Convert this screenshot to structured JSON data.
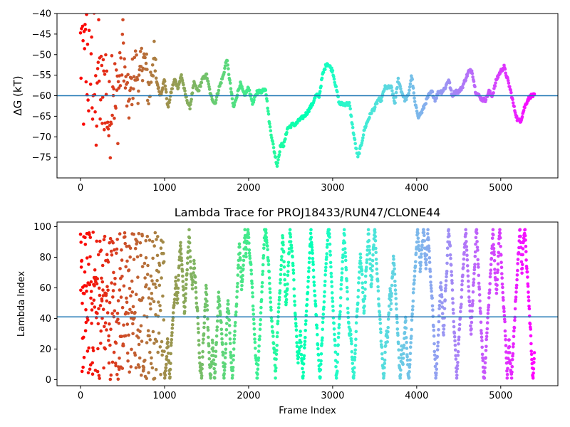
{
  "chart_data": [
    {
      "type": "scatter",
      "title": "",
      "xlabel": "",
      "ylabel": "ΔG (kT)",
      "xlim": [
        -280,
        5680
      ],
      "ylim": [
        -80,
        -40
      ],
      "xticks": [
        0,
        1000,
        2000,
        3000,
        4000,
        5000
      ],
      "yticks": [
        -75,
        -70,
        -65,
        -60,
        -55,
        -50,
        -45,
        -40
      ],
      "x_tick_labels": [
        "0",
        "1000",
        "2000",
        "3000",
        "4000",
        "5000"
      ],
      "y_tick_labels": [
        "−75",
        "−70",
        "−65",
        "−60",
        "−55",
        "−50",
        "−45",
        "−40"
      ],
      "hline": -60,
      "colormap": "rainbow",
      "color_by": "frame (red at start → violet at end)",
      "trace": [
        [
          0,
          -50
        ],
        [
          20,
          -47
        ],
        [
          40,
          -58
        ],
        [
          60,
          -52
        ],
        [
          80,
          -49
        ],
        [
          100,
          -55
        ],
        [
          120,
          -44
        ],
        [
          140,
          -60
        ],
        [
          160,
          -51
        ],
        [
          180,
          -66
        ],
        [
          200,
          -49
        ],
        [
          230,
          -58
        ],
        [
          260,
          -62
        ],
        [
          300,
          -55
        ],
        [
          340,
          -69
        ],
        [
          380,
          -51
        ],
        [
          420,
          -64
        ],
        [
          460,
          -56
        ],
        [
          500,
          -45
        ],
        [
          540,
          -59
        ],
        [
          580,
          -62
        ],
        [
          620,
          -56
        ],
        [
          660,
          -53
        ],
        [
          700,
          -58
        ],
        [
          740,
          -50
        ],
        [
          780,
          -54
        ],
        [
          820,
          -60
        ],
        [
          860,
          -50
        ],
        [
          900,
          -56
        ],
        [
          950,
          -60
        ],
        [
          1000,
          -56
        ],
        [
          1040,
          -63
        ],
        [
          1080,
          -59
        ],
        [
          1120,
          -56
        ],
        [
          1160,
          -58
        ],
        [
          1200,
          -55
        ],
        [
          1250,
          -60
        ],
        [
          1300,
          -63
        ],
        [
          1350,
          -57
        ],
        [
          1400,
          -59
        ],
        [
          1450,
          -56
        ],
        [
          1500,
          -55
        ],
        [
          1550,
          -60
        ],
        [
          1600,
          -62
        ],
        [
          1650,
          -58
        ],
        [
          1700,
          -55
        ],
        [
          1740,
          -51
        ],
        [
          1780,
          -57
        ],
        [
          1820,
          -63
        ],
        [
          1860,
          -60
        ],
        [
          1900,
          -57
        ],
        [
          1950,
          -60
        ],
        [
          2000,
          -58
        ],
        [
          2050,
          -62
        ],
        [
          2100,
          -59
        ],
        [
          2150,
          -59
        ],
        [
          2200,
          -58
        ],
        [
          2250,
          -67
        ],
        [
          2300,
          -73
        ],
        [
          2340,
          -77
        ],
        [
          2380,
          -72
        ],
        [
          2420,
          -72
        ],
        [
          2460,
          -68
        ],
        [
          2520,
          -67
        ],
        [
          2560,
          -67
        ],
        [
          2600,
          -66
        ],
        [
          2660,
          -65
        ],
        [
          2700,
          -64
        ],
        [
          2760,
          -62
        ],
        [
          2800,
          -60
        ],
        [
          2840,
          -60
        ],
        [
          2880,
          -55
        ],
        [
          2930,
          -52
        ],
        [
          2970,
          -53
        ],
        [
          3000,
          -54
        ],
        [
          3040,
          -58
        ],
        [
          3080,
          -62
        ],
        [
          3120,
          -62
        ],
        [
          3160,
          -62
        ],
        [
          3200,
          -62
        ],
        [
          3240,
          -68
        ],
        [
          3280,
          -73
        ],
        [
          3300,
          -75
        ],
        [
          3340,
          -72
        ],
        [
          3380,
          -68
        ],
        [
          3420,
          -66
        ],
        [
          3460,
          -64
        ],
        [
          3500,
          -63
        ],
        [
          3540,
          -61
        ],
        [
          3580,
          -61
        ],
        [
          3620,
          -58
        ],
        [
          3660,
          -58
        ],
        [
          3700,
          -58
        ],
        [
          3740,
          -62
        ],
        [
          3780,
          -56
        ],
        [
          3820,
          -59
        ],
        [
          3860,
          -61
        ],
        [
          3900,
          -60
        ],
        [
          3940,
          -55
        ],
        [
          3980,
          -62
        ],
        [
          4020,
          -65
        ],
        [
          4060,
          -64
        ],
        [
          4100,
          -62
        ],
        [
          4140,
          -60
        ],
        [
          4180,
          -59
        ],
        [
          4220,
          -61
        ],
        [
          4260,
          -59
        ],
        [
          4300,
          -59
        ],
        [
          4340,
          -58
        ],
        [
          4380,
          -56
        ],
        [
          4420,
          -60
        ],
        [
          4460,
          -59
        ],
        [
          4500,
          -59
        ],
        [
          4540,
          -58
        ],
        [
          4580,
          -56
        ],
        [
          4620,
          -54
        ],
        [
          4660,
          -54
        ],
        [
          4700,
          -59
        ],
        [
          4740,
          -60
        ],
        [
          4780,
          -61
        ],
        [
          4820,
          -61
        ],
        [
          4860,
          -59
        ],
        [
          4900,
          -60
        ],
        [
          4950,
          -56
        ],
        [
          5000,
          -54
        ],
        [
          5040,
          -53
        ],
        [
          5080,
          -56
        ],
        [
          5120,
          -59
        ],
        [
          5160,
          -63
        ],
        [
          5200,
          -66
        ],
        [
          5240,
          -66
        ],
        [
          5280,
          -63
        ],
        [
          5320,
          -61
        ],
        [
          5360,
          -60
        ],
        [
          5400,
          -60
        ]
      ]
    },
    {
      "type": "scatter",
      "title": "Lambda Trace for PROJ18433/RUN47/CLONE44",
      "xlabel": "Frame Index",
      "ylabel": "Lambda Index",
      "xlim": [
        -280,
        5680
      ],
      "ylim": [
        -4,
        103
      ],
      "xticks": [
        0,
        1000,
        2000,
        3000,
        4000,
        5000
      ],
      "yticks": [
        0,
        20,
        40,
        60,
        80,
        100
      ],
      "x_tick_labels": [
        "0",
        "1000",
        "2000",
        "3000",
        "4000",
        "5000"
      ],
      "y_tick_labels": [
        "0",
        "20",
        "40",
        "60",
        "80",
        "100"
      ],
      "hline": 41,
      "colormap": "rainbow",
      "color_by": "frame (red at start → violet at end)",
      "frames": 5400,
      "lambda_range": [
        0,
        99
      ]
    }
  ]
}
